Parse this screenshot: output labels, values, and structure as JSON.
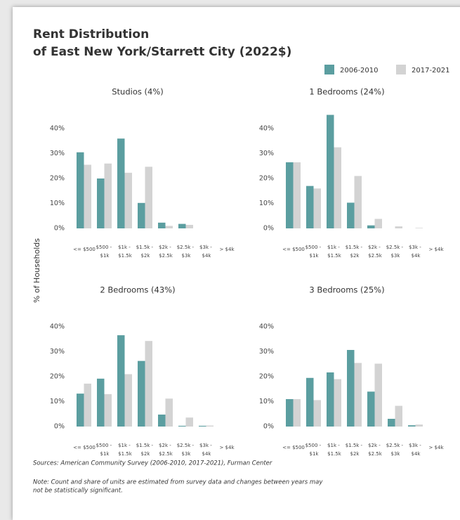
{
  "title": [
    "Rent Distribution",
    "of East New York/Starrett City (2022$)"
  ],
  "y_label": "% of Households",
  "sources": "Sources: American Community Survey (2006-2010, 2017-2021), Furman Center",
  "note": [
    "Note: Count and share of units are estimated from survey data and changes between years may",
    "not be statistically significant."
  ],
  "chart_data": [
    {
      "type": "bar",
      "title": "Studios (4%)",
      "categories": [
        "<= $500",
        "$500 - $1k",
        "$1k - $1.5k",
        "$1.5k - $2k",
        "$2k - $2.5k",
        "$2.5k - $3k",
        "$3k - $4k",
        "> $4k"
      ],
      "series": [
        {
          "name": "2006-2010",
          "color": "#5b9ea0",
          "values": [
            30.5,
            20,
            36,
            10.2,
            2.3,
            1.8,
            0,
            0
          ]
        },
        {
          "name": "2017-2021",
          "color": "#d3d3d3",
          "values": [
            25.5,
            26,
            22.3,
            24.7,
            1,
            1.4,
            0,
            0
          ]
        }
      ],
      "ylim": [
        0,
        46
      ],
      "yticks": [
        {
          "value": 0,
          "label": "0%"
        },
        {
          "value": 10,
          "label": "10%"
        },
        {
          "value": 20,
          "label": "20%"
        },
        {
          "value": 30,
          "label": "30%"
        },
        {
          "value": 40,
          "label": "40%"
        }
      ]
    },
    {
      "type": "bar",
      "title": "1 Bedrooms (24%)",
      "categories": [
        "<= $500",
        "$500 - $1k",
        "$1k - $1.5k",
        "$1.5k - $2k",
        "$2k - $2.5k",
        "$2.5k - $3k",
        "$3k - $4k",
        "> $4k"
      ],
      "series": [
        {
          "name": "2006-2010",
          "color": "#5b9ea0",
          "values": [
            26.5,
            17,
            45.5,
            10.3,
            1.2,
            0,
            0,
            0
          ]
        },
        {
          "name": "2017-2021",
          "color": "#d3d3d3",
          "values": [
            26.5,
            16,
            32.5,
            21,
            3.8,
            0.8,
            0.2,
            0
          ]
        }
      ],
      "ylim": [
        0,
        46
      ],
      "yticks": [
        {
          "value": 0,
          "label": "0%"
        },
        {
          "value": 10,
          "label": "10%"
        },
        {
          "value": 20,
          "label": "20%"
        },
        {
          "value": 30,
          "label": "30%"
        },
        {
          "value": 40,
          "label": "40%"
        }
      ]
    },
    {
      "type": "bar",
      "title": "2 Bedrooms (43%)",
      "categories": [
        "<= $500",
        "$500 - $1k",
        "$1k - $1.5k",
        "$1.5k - $2k",
        "$2k - $2.5k",
        "$2.5k - $3k",
        "$3k - $4k",
        "> $4k"
      ],
      "series": [
        {
          "name": "2006-2010",
          "color": "#5b9ea0",
          "values": [
            13.2,
            19.2,
            36.6,
            26.3,
            4.8,
            0.3,
            0.3,
            0
          ]
        },
        {
          "name": "2017-2021",
          "color": "#d3d3d3",
          "values": [
            17.2,
            13,
            21,
            34.3,
            11.2,
            3.6,
            0.4,
            0
          ]
        }
      ],
      "ylim": [
        0,
        46
      ],
      "yticks": [
        {
          "value": 0,
          "label": "0%"
        },
        {
          "value": 10,
          "label": "10%"
        },
        {
          "value": 20,
          "label": "20%"
        },
        {
          "value": 30,
          "label": "30%"
        },
        {
          "value": 40,
          "label": "40%"
        }
      ]
    },
    {
      "type": "bar",
      "title": "3 Bedrooms (25%)",
      "categories": [
        "<= $500",
        "$500 - $1k",
        "$1k - $1.5k",
        "$1.5k - $2k",
        "$2k - $2.5k",
        "$2.5k - $3k",
        "$3k - $4k",
        "> $4k"
      ],
      "series": [
        {
          "name": "2006-2010",
          "color": "#5b9ea0",
          "values": [
            11,
            19.5,
            21.7,
            30.7,
            14,
            3.1,
            0.5,
            0
          ]
        },
        {
          "name": "2017-2021",
          "color": "#d3d3d3",
          "values": [
            11,
            10.6,
            19,
            25.5,
            25.2,
            8.3,
            0.8,
            0
          ]
        }
      ],
      "ylim": [
        0,
        46
      ],
      "yticks": [
        {
          "value": 0,
          "label": "0%"
        },
        {
          "value": 10,
          "label": "10%"
        },
        {
          "value": 20,
          "label": "20%"
        },
        {
          "value": 30,
          "label": "30%"
        },
        {
          "value": 40,
          "label": "40%"
        }
      ]
    }
  ]
}
